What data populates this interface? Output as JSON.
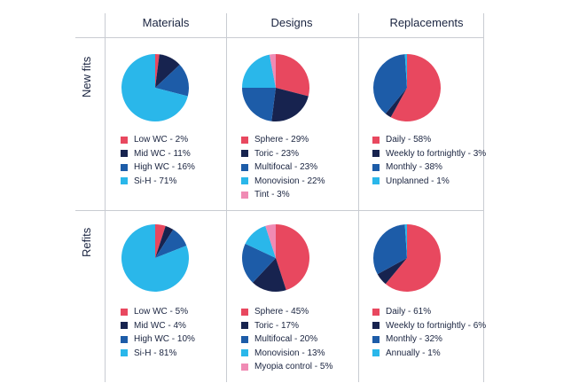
{
  "colors": {
    "red": "#e8485f",
    "navy": "#17234f",
    "blue": "#1d5ca8",
    "cyan": "#2ab7ea",
    "pink": "#f08bb4",
    "grid": "#c9ccd2",
    "text": "#1a2440"
  },
  "columns": [
    "Materials",
    "Designs",
    "Replacements"
  ],
  "rows": [
    "New fits",
    "Refits"
  ],
  "chart_data": [
    {
      "type": "pie",
      "row": "New fits",
      "column": "Materials",
      "slices": [
        {
          "label": "Low WC - 2%",
          "value": 2,
          "color": "red"
        },
        {
          "label": "Mid WC - 11%",
          "value": 11,
          "color": "navy"
        },
        {
          "label": "High WC - 16%",
          "value": 16,
          "color": "blue"
        },
        {
          "label": "Si-H - 71%",
          "value": 71,
          "color": "cyan"
        }
      ]
    },
    {
      "type": "pie",
      "row": "New fits",
      "column": "Designs",
      "slices": [
        {
          "label": "Sphere - 29%",
          "value": 29,
          "color": "red"
        },
        {
          "label": "Toric - 23%",
          "value": 23,
          "color": "navy"
        },
        {
          "label": "Multifocal - 23%",
          "value": 23,
          "color": "blue"
        },
        {
          "label": "Monovision - 22%",
          "value": 22,
          "color": "cyan"
        },
        {
          "label": "Tint - 3%",
          "value": 3,
          "color": "pink"
        }
      ]
    },
    {
      "type": "pie",
      "row": "New fits",
      "column": "Replacements",
      "slices": [
        {
          "label": "Daily - 58%",
          "value": 58,
          "color": "red"
        },
        {
          "label": "Weekly to fortnightly - 3%",
          "value": 3,
          "color": "navy"
        },
        {
          "label": "Monthly - 38%",
          "value": 38,
          "color": "blue"
        },
        {
          "label": "Unplanned - 1%",
          "value": 1,
          "color": "cyan"
        }
      ]
    },
    {
      "type": "pie",
      "row": "Refits",
      "column": "Materials",
      "slices": [
        {
          "label": "Low WC - 5%",
          "value": 5,
          "color": "red"
        },
        {
          "label": "Mid WC - 4%",
          "value": 4,
          "color": "navy"
        },
        {
          "label": "High WC - 10%",
          "value": 10,
          "color": "blue"
        },
        {
          "label": "Si-H - 81%",
          "value": 81,
          "color": "cyan"
        }
      ]
    },
    {
      "type": "pie",
      "row": "Refits",
      "column": "Designs",
      "slices": [
        {
          "label": "Sphere - 45%",
          "value": 45,
          "color": "red"
        },
        {
          "label": "Toric - 17%",
          "value": 17,
          "color": "navy"
        },
        {
          "label": "Multifocal - 20%",
          "value": 20,
          "color": "blue"
        },
        {
          "label": "Monovision - 13%",
          "value": 13,
          "color": "cyan"
        },
        {
          "label": "Myopia control - 5%",
          "value": 5,
          "color": "pink"
        }
      ]
    },
    {
      "type": "pie",
      "row": "Refits",
      "column": "Replacements",
      "slices": [
        {
          "label": "Daily - 61%",
          "value": 61,
          "color": "red"
        },
        {
          "label": "Weekly to fortnightly - 6%",
          "value": 6,
          "color": "navy"
        },
        {
          "label": "Monthly - 32%",
          "value": 32,
          "color": "blue"
        },
        {
          "label": "Annually - 1%",
          "value": 1,
          "color": "cyan"
        }
      ]
    }
  ]
}
